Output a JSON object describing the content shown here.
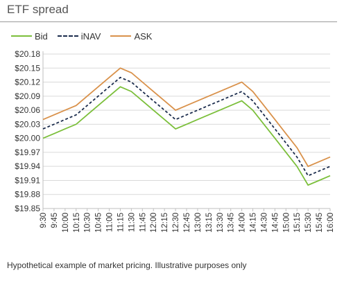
{
  "chart_data": {
    "type": "line",
    "title": "ETF spread",
    "legend_position": "top-left",
    "grid": true,
    "x": [
      "9:30",
      "9:45",
      "10:00",
      "10:15",
      "10:30",
      "10:45",
      "11:00",
      "11:15",
      "11:30",
      "11:45",
      "12:00",
      "12:15",
      "12:30",
      "12:45",
      "13:00",
      "13:15",
      "13:30",
      "13:45",
      "14:00",
      "14:15",
      "14:30",
      "14:45",
      "15:00",
      "15:15",
      "15:30",
      "15:45",
      "16:00"
    ],
    "y_ticks": [
      "$20.18",
      "$20.15",
      "$20.12",
      "$20.09",
      "$20.06",
      "$20.03",
      "$20.00",
      "$19.97",
      "$19.94",
      "$19.91",
      "$19.88",
      "$19.85"
    ],
    "ylim": [
      19.85,
      20.18
    ],
    "series": [
      {
        "name": "Bid",
        "color": "#7bbf3a",
        "dash": "solid",
        "values": [
          20.0,
          20.01,
          20.02,
          20.03,
          20.05,
          20.07,
          20.09,
          20.11,
          20.1,
          20.08,
          20.06,
          20.04,
          20.02,
          20.03,
          20.04,
          20.05,
          20.06,
          20.07,
          20.08,
          20.06,
          20.03,
          20.0,
          19.97,
          19.94,
          19.9,
          19.91,
          19.92
        ]
      },
      {
        "name": "iNAV",
        "color": "#1a2b4c",
        "dash": "dashed",
        "values": [
          20.02,
          20.03,
          20.04,
          20.05,
          20.07,
          20.09,
          20.11,
          20.13,
          20.12,
          20.1,
          20.08,
          20.06,
          20.04,
          20.05,
          20.06,
          20.07,
          20.08,
          20.09,
          20.1,
          20.08,
          20.05,
          20.02,
          19.99,
          19.96,
          19.92,
          19.93,
          19.94
        ]
      },
      {
        "name": "ASK",
        "color": "#d9914a",
        "dash": "solid",
        "values": [
          20.04,
          20.05,
          20.06,
          20.07,
          20.09,
          20.11,
          20.13,
          20.15,
          20.14,
          20.12,
          20.1,
          20.08,
          20.06,
          20.07,
          20.08,
          20.09,
          20.1,
          20.11,
          20.12,
          20.1,
          20.07,
          20.04,
          20.01,
          19.98,
          19.94,
          19.95,
          19.96
        ]
      }
    ]
  },
  "footnote": "Hypothetical example of market pricing.  Illustrative purposes only"
}
